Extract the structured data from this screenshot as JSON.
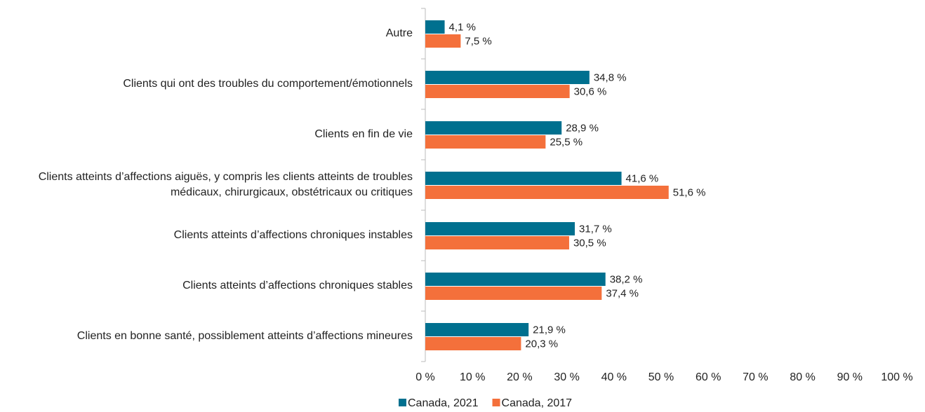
{
  "chart_data": {
    "type": "hbar",
    "categories": [
      "Autre",
      "Clients qui ont des troubles du comportement/émotionnels",
      "Clients en fin de vie",
      "Clients atteints d’affections aiguës, y compris les clients atteints de troubles médicaux, chirurgicaux, obstétricaux ou critiques",
      "Clients atteints d’affections chroniques instables",
      "Clients atteints d’affections chroniques stables",
      "Clients en bonne santé, possiblement atteints d’affections mineures"
    ],
    "series": [
      {
        "name": "Canada, 2021",
        "color": "#00708f",
        "values": [
          4.1,
          34.8,
          28.9,
          41.6,
          31.7,
          38.2,
          21.9
        ],
        "value_labels": [
          "4,1 %",
          "34,8 %",
          "28,9 %",
          "41,6 %",
          "31,7 %",
          "38,2 %",
          "21,9 %"
        ]
      },
      {
        "name": "Canada, 2017",
        "color": "#f4703b",
        "values": [
          7.5,
          30.6,
          25.5,
          51.6,
          30.5,
          37.4,
          20.3
        ],
        "value_labels": [
          "7,5 %",
          "30,6 %",
          "25,5 %",
          "51,6 %",
          "30,5 %",
          "37,4 %",
          "20,3 %"
        ]
      }
    ],
    "xlim": [
      0,
      100
    ],
    "xticks": [
      {
        "value": 0,
        "label": "0 %"
      },
      {
        "value": 10,
        "label": "10 %"
      },
      {
        "value": 20,
        "label": "20 %"
      },
      {
        "value": 30,
        "label": "30 %"
      },
      {
        "value": 40,
        "label": "40 %"
      },
      {
        "value": 50,
        "label": "50 %"
      },
      {
        "value": 60,
        "label": "60 %"
      },
      {
        "value": 70,
        "label": "70 %"
      },
      {
        "value": 80,
        "label": "80 %"
      },
      {
        "value": 90,
        "label": "90 %"
      },
      {
        "value": 100,
        "label": "100 %"
      }
    ],
    "legend": "bottom"
  }
}
